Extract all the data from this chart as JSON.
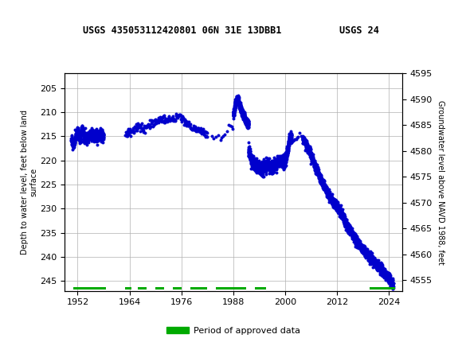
{
  "title_left": "USGS 435053112420801 06N 31E 13DBB1",
  "title_right": "USGS 24",
  "ylabel_left": "Depth to water level, feet below land\nsurface",
  "ylabel_right": "Groundwater level above NAVD 1988, feet",
  "xlim": [
    1949,
    2027
  ],
  "ylim_left_top": 202,
  "ylim_left_bottom": 247,
  "ylim_right_top": 4595,
  "ylim_right_bottom": 4553,
  "xticks": [
    1952,
    1964,
    1976,
    1988,
    2000,
    2012,
    2024
  ],
  "yticks_left": [
    205,
    210,
    215,
    220,
    225,
    230,
    235,
    240,
    245
  ],
  "yticks_right": [
    4595,
    4590,
    4585,
    4580,
    4575,
    4570,
    4565,
    4560,
    4555
  ],
  "header_color": "#1b6b3a",
  "data_color": "#0000cc",
  "approved_color": "#00aa00",
  "background_color": "#ffffff",
  "grid_color": "#b0b0b0",
  "legend_label": "Period of approved data",
  "approved_bars": [
    [
      1951,
      1958.5
    ],
    [
      1963.0,
      1964.5
    ],
    [
      1966.0,
      1968.0
    ],
    [
      1970.0,
      1972.0
    ],
    [
      1974.0,
      1976.0
    ],
    [
      1978.0,
      1982.0
    ],
    [
      1984.0,
      1991.0
    ],
    [
      1993.0,
      1995.5
    ],
    [
      2019.5,
      2025.5
    ]
  ]
}
